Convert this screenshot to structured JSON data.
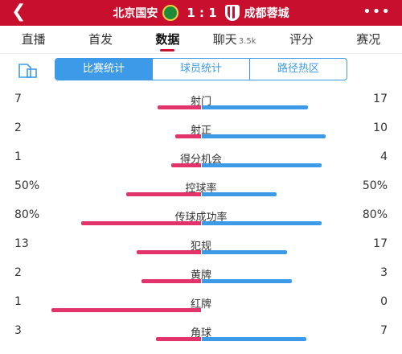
{
  "header": {
    "home_team": "北京国安",
    "away_team": "成都蓉城",
    "score": "1 : 1",
    "back_icon": "chevron-left-icon",
    "more_icon": "more-dots-icon"
  },
  "tabs": [
    {
      "label": "直播",
      "badge": ""
    },
    {
      "label": "首发",
      "badge": ""
    },
    {
      "label": "数据",
      "badge": ""
    },
    {
      "label": "聊天",
      "badge": "3.5k"
    },
    {
      "label": "评分",
      "badge": ""
    },
    {
      "label": "赛况",
      "badge": ""
    }
  ],
  "active_tab": "数据",
  "segments": [
    "比赛统计",
    "球员统计",
    "路径热区"
  ],
  "active_segment": "比赛统计",
  "colors": {
    "home": "#e2346a",
    "away": "#3d9ae8",
    "header": "#c8102e"
  },
  "stats": [
    {
      "name": "射门",
      "home": "7",
      "away": "17",
      "home_share": 0.29,
      "away_share": 0.71
    },
    {
      "name": "射正",
      "home": "2",
      "away": "10",
      "home_share": 0.17,
      "away_share": 0.83
    },
    {
      "name": "得分机会",
      "home": "1",
      "away": "4",
      "home_share": 0.2,
      "away_share": 0.8
    },
    {
      "name": "控球率",
      "home": "50%",
      "away": "50%",
      "home_share": 0.5,
      "away_share": 0.5
    },
    {
      "name": "传球成功率",
      "home": "80%",
      "away": "80%",
      "home_share": 0.8,
      "away_share": 0.8
    },
    {
      "name": "犯规",
      "home": "13",
      "away": "17",
      "home_share": 0.43,
      "away_share": 0.57
    },
    {
      "name": "黄牌",
      "home": "2",
      "away": "3",
      "home_share": 0.4,
      "away_share": 0.6
    },
    {
      "name": "红牌",
      "home": "1",
      "away": "0",
      "home_share": 1.0,
      "away_share": 0.0
    },
    {
      "name": "角球",
      "home": "3",
      "away": "7",
      "home_share": 0.3,
      "away_share": 0.7
    }
  ]
}
